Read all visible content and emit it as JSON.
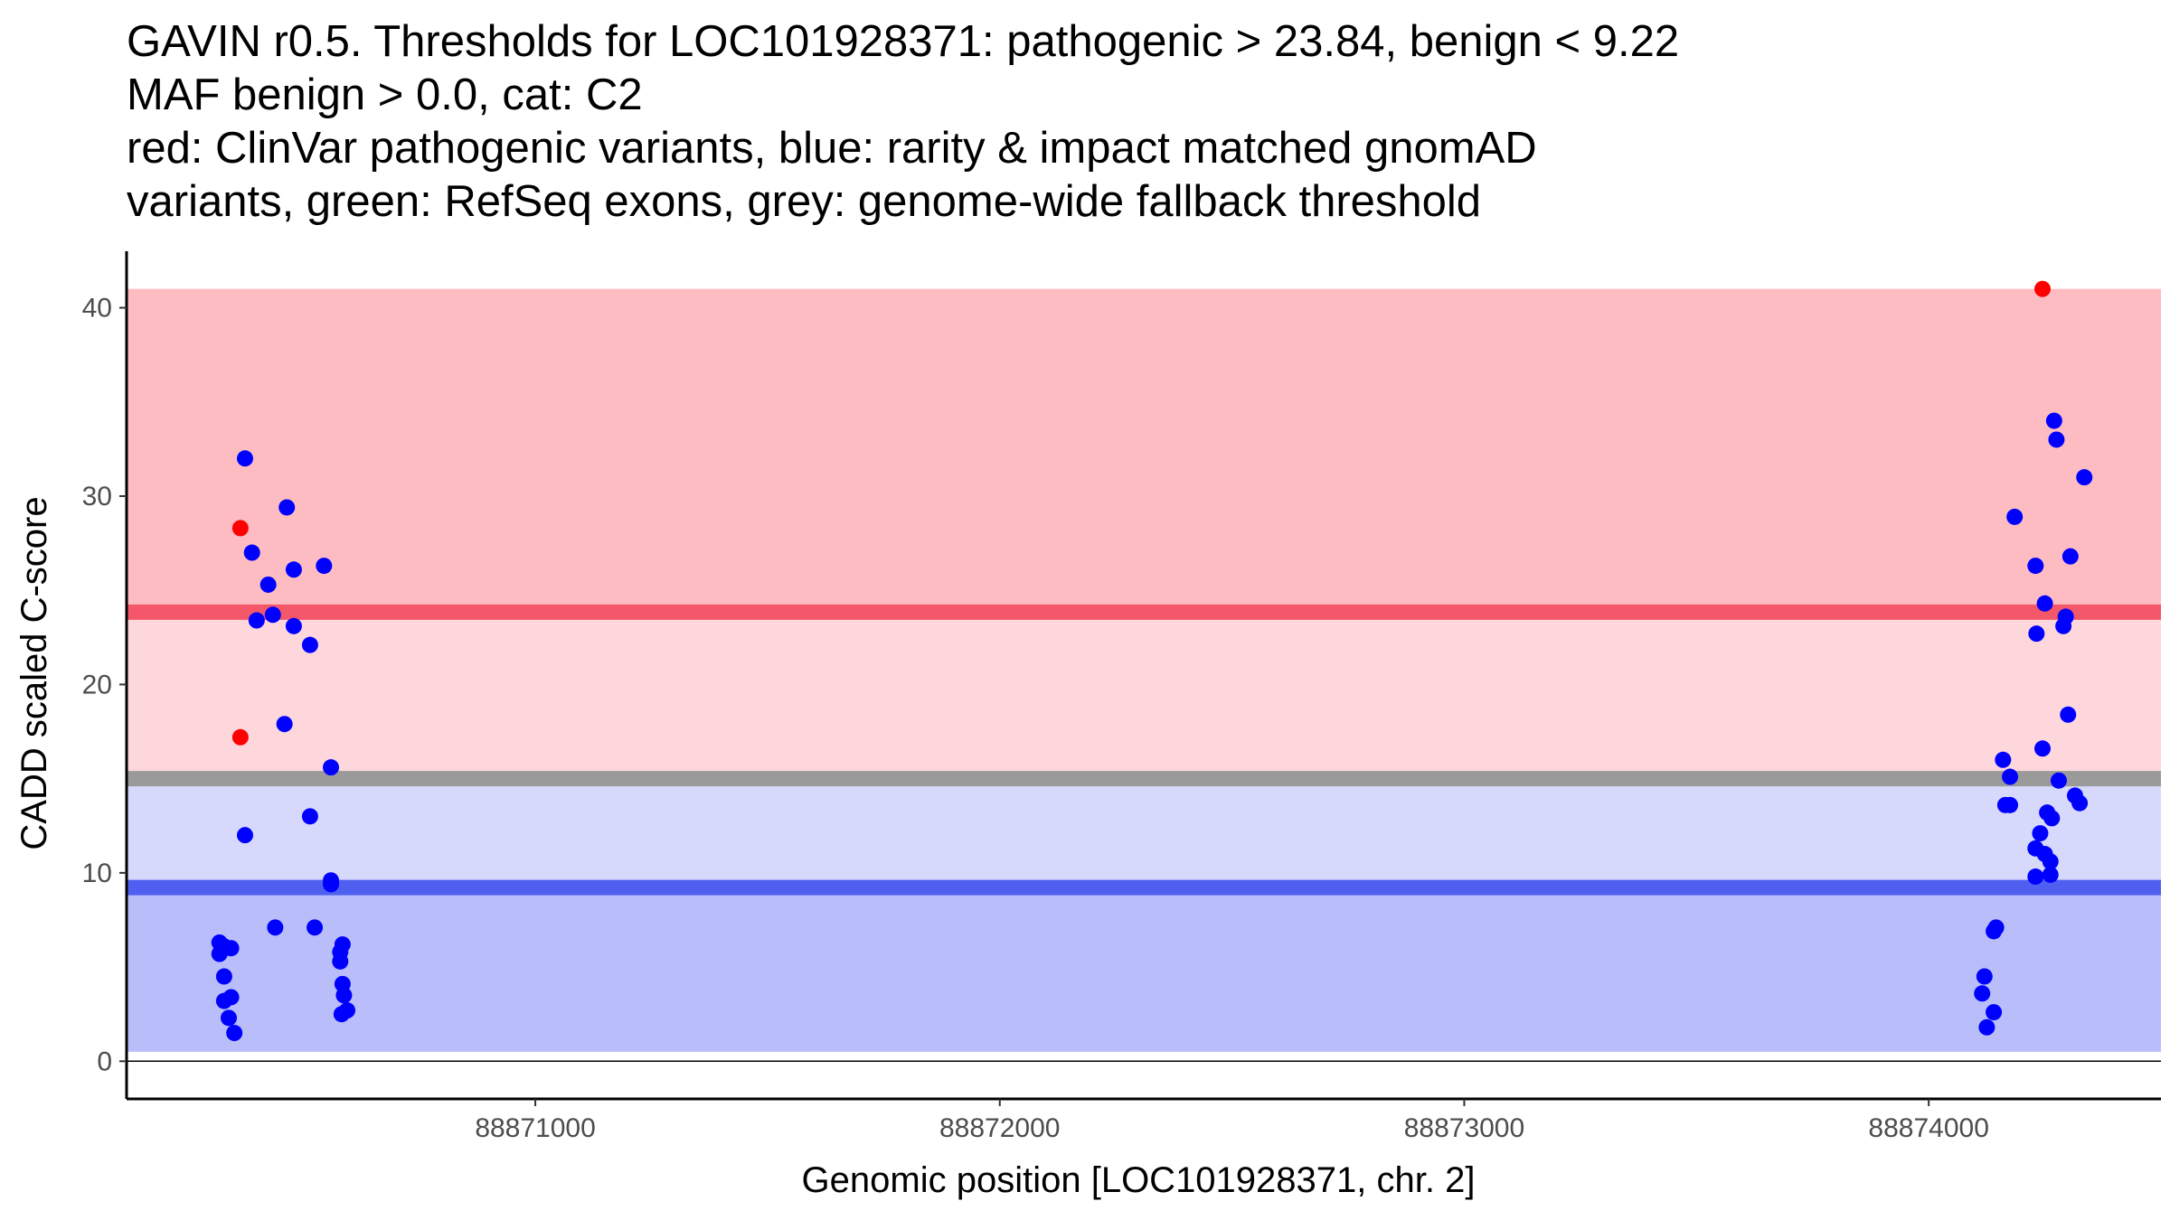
{
  "chart_data": {
    "type": "scatter",
    "title_lines": [
      "GAVIN r0.5. Thresholds for LOC101928371: pathogenic > 23.84, benign < 9.22",
      "MAF benign > 0.0, cat: C2",
      "red: ClinVar pathogenic variants, blue: rarity & impact matched gnomAD",
      "variants, green: RefSeq exons, grey: genome-wide fallback threshold"
    ],
    "xlabel": "Genomic position [LOC101928371, chr. 2]",
    "ylabel": "CADD scaled C-score",
    "xlim": [
      88870120,
      88874500
    ],
    "ylim": [
      -2,
      43
    ],
    "x_ticks": [
      88871000,
      88872000,
      88873000,
      88874000
    ],
    "x_tick_labels": [
      "88871000",
      "88872000",
      "88873000",
      "88874000"
    ],
    "y_ticks": [
      0,
      10,
      20,
      30,
      40
    ],
    "y_tick_labels": [
      "0",
      "10",
      "20",
      "30",
      "40"
    ],
    "grid": false,
    "colors": {
      "pathogenic_band": "#fdbcc1",
      "grey_to_pathogenic_band": "#fdd7dc",
      "benign_to_grey_band": "#d6d9fb",
      "benign_band": "#b9befa",
      "pathogenic_line": "#f4576a",
      "fallback_line": "#9a9a9a",
      "benign_line": "#4f5ff0",
      "pathogenic_point": "#ff0000",
      "benign_point": "#0000ff"
    },
    "bands": [
      {
        "name": "pathogenic-zone",
        "y_range": [
          23.84,
          41
        ],
        "color_key": "pathogenic_band"
      },
      {
        "name": "upper-intermediate-zone",
        "y_range": [
          15,
          23.84
        ],
        "color_key": "grey_to_pathogenic_band"
      },
      {
        "name": "lower-intermediate-zone",
        "y_range": [
          9.22,
          15
        ],
        "color_key": "benign_to_grey_band"
      },
      {
        "name": "benign-zone",
        "y_range": [
          0.5,
          9.22
        ],
        "color_key": "benign_band"
      }
    ],
    "threshold_lines": [
      {
        "name": "pathogenic-threshold-line",
        "value": 23.84,
        "color_key": "pathogenic_line"
      },
      {
        "name": "fallback-threshold-line",
        "value": 15.0,
        "color_key": "fallback_line"
      },
      {
        "name": "benign-threshold-line",
        "value": 9.22,
        "color_key": "benign_line"
      }
    ],
    "series": [
      {
        "name": "ClinVar pathogenic variants",
        "color_key": "pathogenic_point",
        "points": [
          [
            88870365,
            28.3
          ],
          [
            88870365,
            17.2
          ],
          [
            88874245,
            41.0
          ]
        ]
      },
      {
        "name": "rarity & impact matched gnomAD variants",
        "color_key": "benign_point",
        "points": [
          [
            88870320,
            6.3
          ],
          [
            88870320,
            5.7
          ],
          [
            88870330,
            6.1
          ],
          [
            88870345,
            6.0
          ],
          [
            88870330,
            4.5
          ],
          [
            88870330,
            3.2
          ],
          [
            88870345,
            3.4
          ],
          [
            88870340,
            2.3
          ],
          [
            88870352,
            1.5
          ],
          [
            88870375,
            32.0
          ],
          [
            88870375,
            12.0
          ],
          [
            88870390,
            27.0
          ],
          [
            88870400,
            23.4
          ],
          [
            88870425,
            25.3
          ],
          [
            88870435,
            23.7
          ],
          [
            88870440,
            7.1
          ],
          [
            88870460,
            17.9
          ],
          [
            88870465,
            29.4
          ],
          [
            88870480,
            26.1
          ],
          [
            88870480,
            23.1
          ],
          [
            88870515,
            22.1
          ],
          [
            88870515,
            13.0
          ],
          [
            88870525,
            7.1
          ],
          [
            88870545,
            26.3
          ],
          [
            88870560,
            15.6
          ],
          [
            88870560,
            9.6
          ],
          [
            88870560,
            9.4
          ],
          [
            88870585,
            6.2
          ],
          [
            88870580,
            5.8
          ],
          [
            88870580,
            5.3
          ],
          [
            88870585,
            4.1
          ],
          [
            88870588,
            3.5
          ],
          [
            88870583,
            2.5
          ],
          [
            88870595,
            2.7
          ],
          [
            88874120,
            4.5
          ],
          [
            88874115,
            3.6
          ],
          [
            88874125,
            1.8
          ],
          [
            88874140,
            2.6
          ],
          [
            88874140,
            6.9
          ],
          [
            88874145,
            7.1
          ],
          [
            88874160,
            16.0
          ],
          [
            88874165,
            13.6
          ],
          [
            88874175,
            13.6
          ],
          [
            88874175,
            15.1
          ],
          [
            88874185,
            28.9
          ],
          [
            88874230,
            26.3
          ],
          [
            88874232,
            22.7
          ],
          [
            88874230,
            11.3
          ],
          [
            88874230,
            9.8
          ],
          [
            88874240,
            12.1
          ],
          [
            88874245,
            16.6
          ],
          [
            88874250,
            24.3
          ],
          [
            88874250,
            11.0
          ],
          [
            88874255,
            13.2
          ],
          [
            88874262,
            10.6
          ],
          [
            88874262,
            9.9
          ],
          [
            88874265,
            12.9
          ],
          [
            88874270,
            34.0
          ],
          [
            88874275,
            33.0
          ],
          [
            88874280,
            14.9
          ],
          [
            88874290,
            23.1
          ],
          [
            88874295,
            23.6
          ],
          [
            88874300,
            18.4
          ],
          [
            88874305,
            26.8
          ],
          [
            88874315,
            14.1
          ],
          [
            88874325,
            13.7
          ],
          [
            88874335,
            31.0
          ]
        ]
      }
    ]
  }
}
